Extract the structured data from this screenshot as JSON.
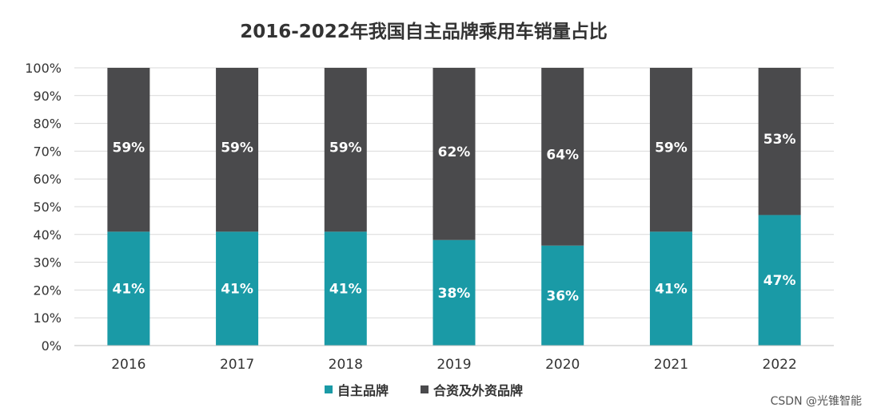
{
  "chart_data": {
    "type": "bar",
    "stacked": true,
    "title": "2016-2022年我国自主品牌乘用车销量占比",
    "categories": [
      "2016",
      "2017",
      "2018",
      "2019",
      "2020",
      "2021",
      "2022"
    ],
    "series": [
      {
        "name": "自主品牌",
        "values": [
          41,
          41,
          41,
          38,
          36,
          41,
          47
        ],
        "labels": [
          "41%",
          "41%",
          "41%",
          "38%",
          "36%",
          "41%",
          "47%"
        ],
        "color": "#1a9aa6"
      },
      {
        "name": "合资及外资品牌",
        "values": [
          59,
          59,
          59,
          62,
          64,
          59,
          53
        ],
        "labels": [
          "59%",
          "59%",
          "59%",
          "62%",
          "64%",
          "59%",
          "53%"
        ],
        "color": "#4a4a4c"
      }
    ],
    "yticks": [
      "0%",
      "10%",
      "20%",
      "30%",
      "40%",
      "50%",
      "60%",
      "70%",
      "80%",
      "90%",
      "100%"
    ],
    "ylim": [
      0,
      100
    ],
    "grid": true,
    "legend_position": "bottom"
  },
  "watermark": "CSDN @光锥智能"
}
